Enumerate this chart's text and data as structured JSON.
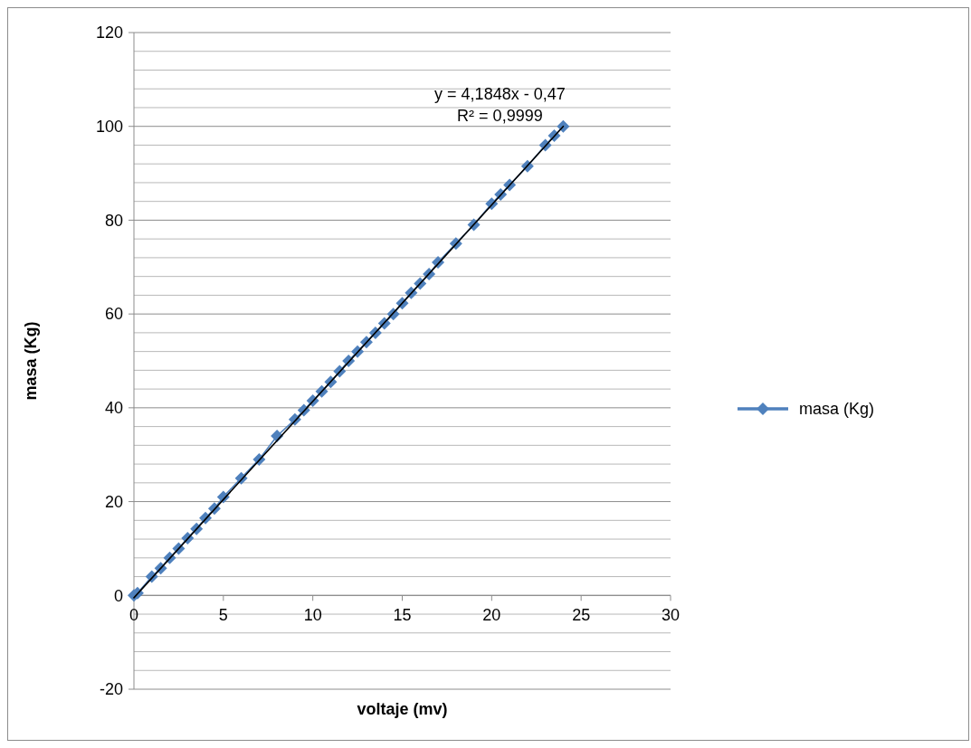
{
  "chart_data": {
    "type": "line",
    "xlabel": "voltaje (mv)",
    "ylabel": "masa (Kg)",
    "annotations": [
      "y = 4,1848x - 0,47",
      "R² = 0,9999"
    ],
    "xlim": [
      0,
      30
    ],
    "xticks": [
      0,
      5,
      10,
      15,
      20,
      25,
      30
    ],
    "ylim": [
      -20,
      120
    ],
    "yticks": [
      -20,
      {
        "value": -16,
        "label": null
      },
      {
        "value": -12,
        "label": null
      },
      {
        "value": -8,
        "label": null
      },
      {
        "value": -4,
        "label": null
      },
      0,
      {
        "value": 4,
        "label": null
      },
      {
        "value": 8,
        "label": null
      },
      {
        "value": 12,
        "label": null
      },
      {
        "value": 16,
        "label": null
      },
      20,
      {
        "value": 24,
        "label": null
      },
      {
        "value": 28,
        "label": null
      },
      {
        "value": 32,
        "label": null
      },
      {
        "value": 36,
        "label": null
      },
      40,
      {
        "value": 44,
        "label": null
      },
      {
        "value": 48,
        "label": null
      },
      {
        "value": 52,
        "label": null
      },
      {
        "value": 56,
        "label": null
      },
      60,
      {
        "value": 64,
        "label": null
      },
      {
        "value": 68,
        "label": null
      },
      {
        "value": 72,
        "label": null
      },
      {
        "value": 76,
        "label": null
      },
      80,
      {
        "value": 84,
        "label": null
      },
      {
        "value": 88,
        "label": null
      },
      {
        "value": 92,
        "label": null
      },
      {
        "value": 96,
        "label": null
      },
      100,
      {
        "value": 104,
        "label": null
      },
      {
        "value": 108,
        "label": null
      },
      {
        "value": 112,
        "label": null
      },
      {
        "value": 116,
        "label": null
      },
      120
    ],
    "grid": "y",
    "legend": "right",
    "marker": "diamond",
    "line_style": "solid",
    "series": [
      {
        "name": "masa (Kg)",
        "color": "#4f81bd",
        "x": [
          0,
          0.2,
          1,
          1.5,
          2,
          2.5,
          3,
          3.5,
          4,
          4.5,
          5,
          6,
          7,
          8,
          9,
          9.5,
          10,
          10.5,
          11,
          11.5,
          12,
          12.5,
          13,
          13.5,
          14,
          14.5,
          15,
          15.5,
          16,
          16.5,
          17,
          18,
          19,
          20,
          20.5,
          21,
          22,
          23,
          23.5,
          24
        ],
        "values": [
          0,
          0.5,
          4,
          5.8,
          8,
          10,
          12.2,
          14.2,
          16.5,
          18.5,
          21,
          25,
          29,
          34,
          37.5,
          39.5,
          41.5,
          43.5,
          45.5,
          47.8,
          50,
          52,
          54,
          56,
          58,
          60,
          62.3,
          64.5,
          66.5,
          68.5,
          71,
          75,
          79,
          83.5,
          85.5,
          87.5,
          91.5,
          96,
          98,
          100
        ]
      },
      {
        "type": "line",
        "color": "#000000",
        "marker": "none",
        "x": [
          0,
          24
        ],
        "values": [
          -0.5,
          100
        ]
      }
    ]
  }
}
